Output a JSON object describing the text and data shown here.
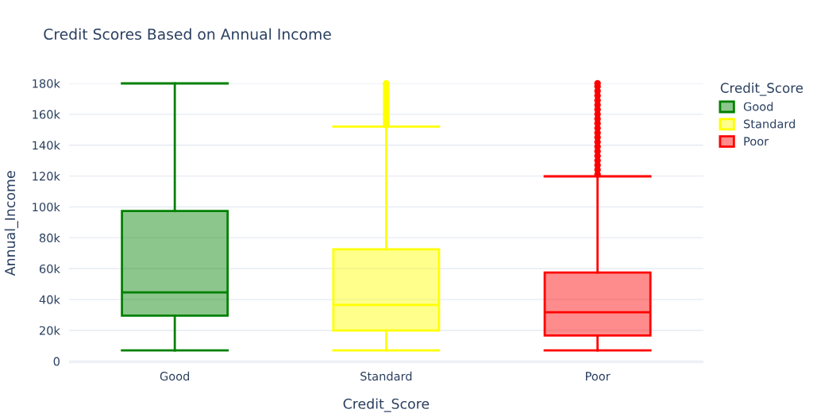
{
  "chart_data": {
    "type": "box",
    "title": "Credit Scores Based on Annual Income",
    "xlabel": "Credit_Score",
    "ylabel": "Annual_Income",
    "legend_title": "Credit_Score",
    "categories": [
      "Good",
      "Standard",
      "Poor"
    ],
    "series": [
      {
        "name": "Good",
        "color": "#008000",
        "boxes": [
          {
            "low": 7000,
            "q1": 29600,
            "median": 44600,
            "q3": 97300,
            "high": 180000
          },
          null,
          null
        ]
      },
      {
        "name": "Standard",
        "color": "#ffff00",
        "boxes": [
          null,
          {
            "low": 7000,
            "q1": 19900,
            "median": 36500,
            "q3": 72500,
            "high": 152000,
            "outliers": [
              153000,
              155000,
              157000,
              159000,
              161000,
              163000,
              165000,
              167000,
              169000,
              171000,
              173000,
              175000,
              177000,
              179000,
              180000
            ]
          },
          null
        ]
      },
      {
        "name": "Poor",
        "color": "#ff0000",
        "boxes": [
          null,
          null,
          {
            "low": 7000,
            "q1": 16700,
            "median": 31700,
            "q3": 57500,
            "high": 119800,
            "outliers": [
              121000,
              124000,
              127000,
              130000,
              133000,
              136000,
              139000,
              142000,
              145000,
              148000,
              151000,
              154000,
              157000,
              160000,
              163000,
              166000,
              169000,
              172000,
              175000,
              178000,
              180000
            ]
          }
        ]
      }
    ],
    "ylim": [
      -1000,
      180000
    ],
    "yticks": [
      {
        "value": 0,
        "label": "0"
      },
      {
        "value": 20000,
        "label": "20k"
      },
      {
        "value": 40000,
        "label": "40k"
      },
      {
        "value": 60000,
        "label": "60k"
      },
      {
        "value": 80000,
        "label": "80k"
      },
      {
        "value": 100000,
        "label": "100k"
      },
      {
        "value": 120000,
        "label": "120k"
      },
      {
        "value": 140000,
        "label": "140k"
      },
      {
        "value": 160000,
        "label": "160k"
      },
      {
        "value": 180000,
        "label": "180k"
      }
    ],
    "grid": "y",
    "legend": "top right"
  }
}
